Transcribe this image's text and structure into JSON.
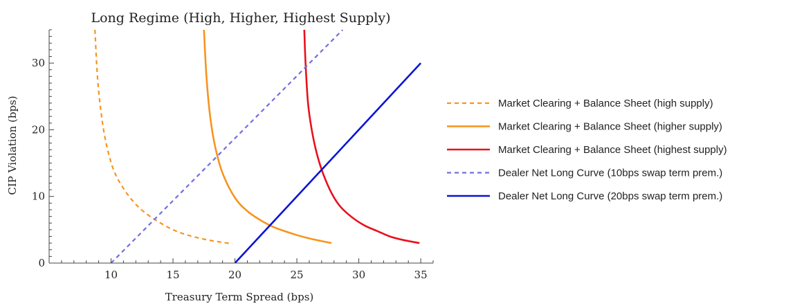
{
  "chart_data": {
    "type": "line",
    "title": "Long Regime (High, Higher, Highest Supply)",
    "xlabel": "Treasury Term Spread (bps)",
    "ylabel": "CIP Violation (bps)",
    "xlim": [
      5,
      36
    ],
    "ylim": [
      0,
      35
    ],
    "x_ticks": [
      10,
      15,
      20,
      25,
      30,
      35
    ],
    "y_ticks": [
      0,
      10,
      20,
      30
    ],
    "x_tick_labels": [
      "10",
      "15",
      "20",
      "25",
      "30",
      "35"
    ],
    "y_tick_labels": [
      "0",
      "10",
      "20",
      "30"
    ],
    "grid": false,
    "legend_position": "right",
    "series": [
      {
        "name": "Market Clearing + Balance Sheet (high supply)",
        "color": "#f7941d",
        "style": "dashed",
        "x": [
          8.7,
          8.9,
          9.2,
          9.6,
          10.2,
          11.0,
          12.0,
          13.0,
          14.0,
          15.0,
          16.0,
          17.0,
          18.0,
          19.0,
          19.8
        ],
        "y": [
          35.0,
          28.0,
          22.5,
          18.0,
          14.0,
          11.2,
          8.8,
          7.2,
          6.0,
          5.0,
          4.3,
          3.8,
          3.4,
          3.1,
          2.9
        ]
      },
      {
        "name": "Market Clearing + Balance Sheet (higher supply)",
        "color": "#f7941d",
        "style": "solid",
        "x": [
          17.5,
          17.7,
          18.0,
          18.4,
          19.0,
          20.0,
          21.0,
          22.0,
          23.0,
          24.0,
          25.0,
          26.0,
          27.0,
          27.8
        ],
        "y": [
          35.0,
          28.0,
          22.0,
          17.5,
          13.5,
          9.8,
          7.8,
          6.5,
          5.5,
          4.8,
          4.2,
          3.7,
          3.3,
          3.0
        ]
      },
      {
        "name": "Market Clearing + Balance Sheet (highest supply)",
        "color": "#e8111c",
        "style": "solid",
        "x": [
          25.6,
          25.7,
          25.9,
          26.2,
          26.6,
          27.1,
          27.8,
          28.5,
          29.5,
          30.5,
          31.5,
          32.5,
          33.5,
          34.9
        ],
        "y": [
          35.0,
          30.0,
          24.0,
          20.0,
          16.5,
          13.5,
          10.5,
          8.5,
          6.8,
          5.6,
          4.8,
          4.0,
          3.5,
          3.0
        ]
      },
      {
        "name": "Dealer Net Long Curve (10bps swap term prem.)",
        "color": "#6f6fdc",
        "style": "dashed",
        "x": [
          10.0,
          28.7
        ],
        "y": [
          0.0,
          35.0
        ]
      },
      {
        "name": "Dealer Net Long Curve (20bps swap term prem.)",
        "color": "#0a14d4",
        "style": "solid",
        "x": [
          20.0,
          35.0
        ],
        "y": [
          0.0,
          30.0
        ]
      }
    ]
  }
}
